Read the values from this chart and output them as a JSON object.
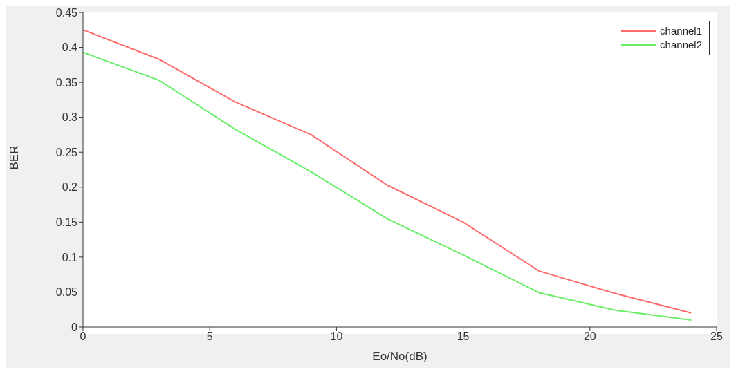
{
  "chart_data": {
    "type": "line",
    "xlabel": "Eo/No(dB)",
    "ylabel": "BER",
    "x": [
      0,
      3,
      6,
      9,
      12,
      15,
      18,
      21,
      24
    ],
    "series": [
      {
        "name": "channel1",
        "color": "#ff6b6b",
        "values": [
          0.425,
          0.383,
          0.322,
          0.275,
          0.203,
          0.15,
          0.08,
          0.048,
          0.02
        ]
      },
      {
        "name": "channel2",
        "color": "#66ee66",
        "values": [
          0.393,
          0.353,
          0.283,
          0.222,
          0.155,
          0.103,
          0.049,
          0.024,
          0.01
        ]
      }
    ],
    "xlim": [
      0,
      25
    ],
    "xticks": [
      0,
      5,
      10,
      15,
      20,
      25
    ],
    "ylim": [
      0,
      0.45
    ],
    "yticks": [
      0,
      0.05,
      0.1,
      0.15,
      0.2,
      0.25,
      0.3,
      0.35,
      0.4,
      0.45
    ],
    "grid": false,
    "legend": "top right",
    "marker": "none",
    "line_style": "solid"
  }
}
